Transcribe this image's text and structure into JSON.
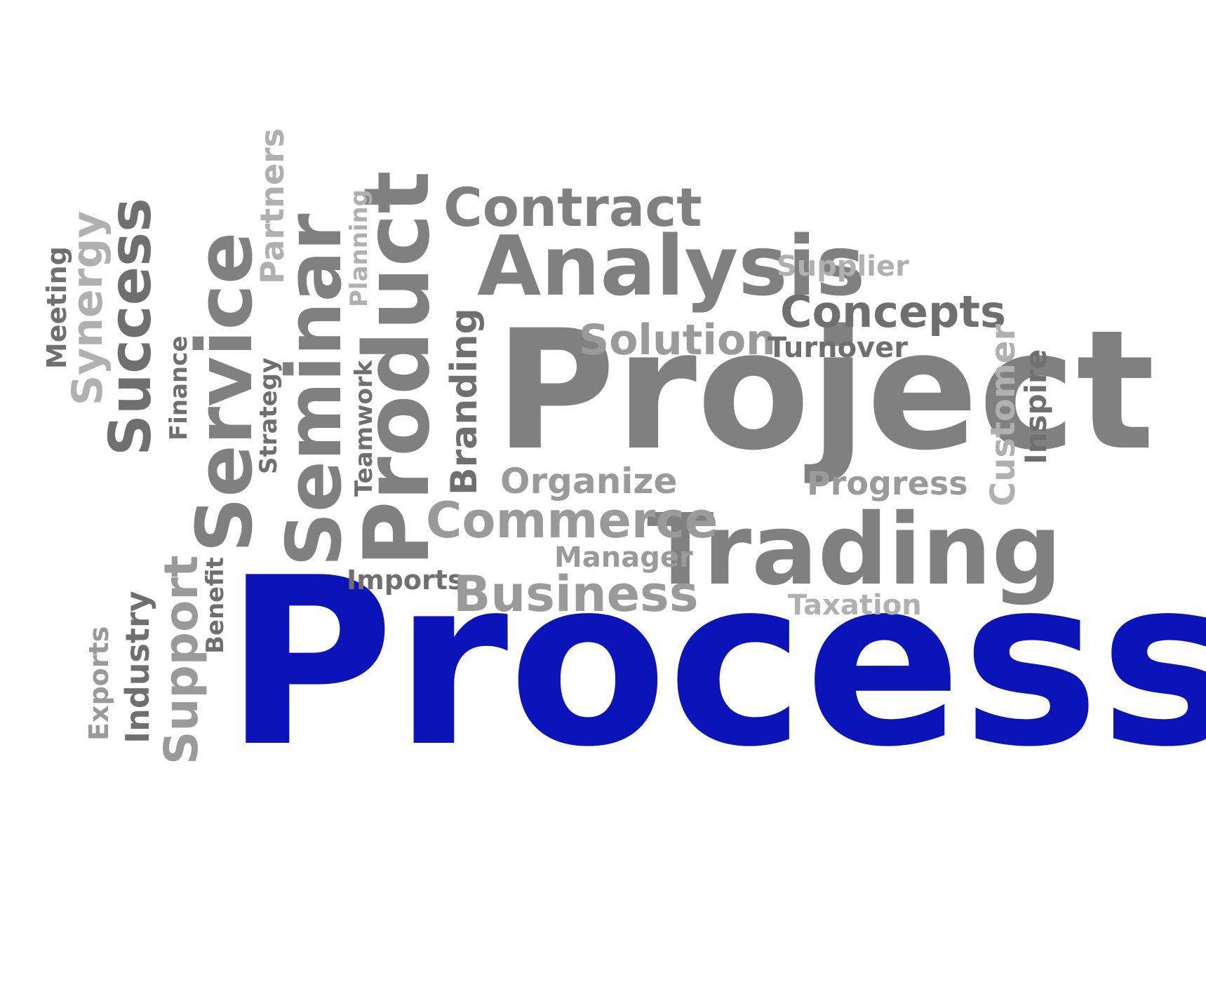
{
  "colors": {
    "background": "#ffffff",
    "primary": "#0a14b8",
    "dark": "#6f6f6f",
    "mid": "#808080",
    "light": "#9a9a9a",
    "pale": "#b0b0b0"
  },
  "words": {
    "process": "Process",
    "project": "Project",
    "trading": "Trading",
    "analysis": "Analysis",
    "contract": "Contract",
    "supplier": "Supplier",
    "concepts": "Concepts",
    "solution": "Solution",
    "turnover": "Turnover",
    "organize": "Organize",
    "progress": "Progress",
    "commerce": "Commerce",
    "manager": "Manager",
    "imports": "Imports",
    "business": "Business",
    "taxation": "Taxation",
    "customer": "Customer",
    "inspire": "Inspire",
    "product": "Product",
    "seminar": "Seminar",
    "service": "Service",
    "success": "Success",
    "synergy": "Synergy",
    "meeting": "Meeting",
    "partners": "Partners",
    "planning": "Planning",
    "branding": "Branding",
    "teamwork": "Teamwork",
    "strategy": "Strategy",
    "finance": "Finance",
    "support": "Support",
    "benefit": "Benefit",
    "industry": "Industry",
    "exports": "Exports"
  }
}
